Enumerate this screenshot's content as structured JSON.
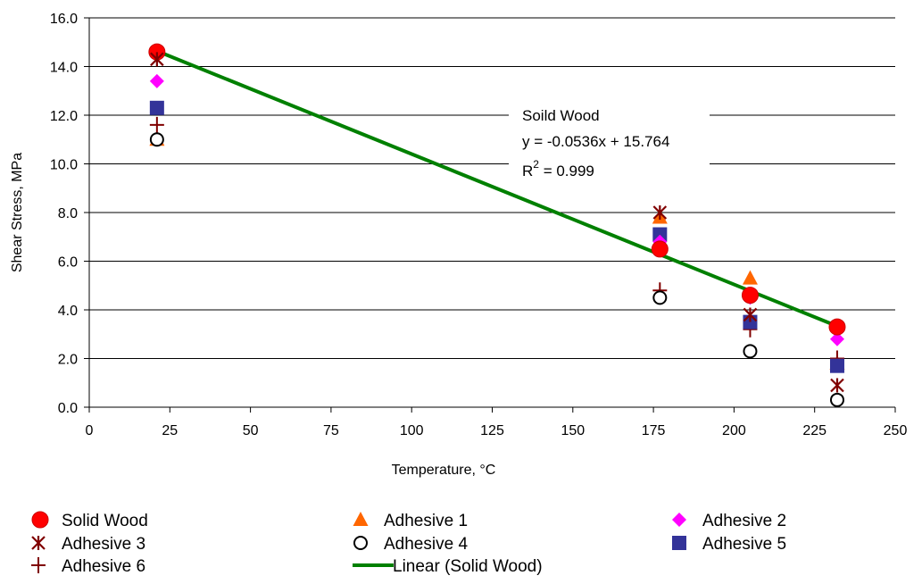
{
  "chart_data": {
    "type": "scatter",
    "xlabel": "Temperature, °C",
    "ylabel": "Shear Stress, MPa",
    "xlim": [
      0,
      250
    ],
    "ylim": [
      0,
      16
    ],
    "x_ticks": [
      "0",
      "25",
      "50",
      "75",
      "100",
      "125",
      "150",
      "175",
      "200",
      "225",
      "250"
    ],
    "y_ticks": [
      "0.0",
      "2.0",
      "4.0",
      "6.0",
      "8.0",
      "10.0",
      "12.0",
      "14.0",
      "16.0"
    ],
    "grid": "horizontal",
    "legend_position": "bottom",
    "series": [
      {
        "name": "Solid Wood",
        "marker": "circle-filled",
        "color": "#ff0000",
        "edge": "#cc0000",
        "x": [
          21,
          177,
          205,
          232
        ],
        "y": [
          14.6,
          6.5,
          4.6,
          3.3
        ]
      },
      {
        "name": "Adhesive 1",
        "marker": "triangle",
        "color": "#ff6600",
        "x": [
          21,
          177,
          205,
          232
        ],
        "y": [
          11.0,
          7.8,
          5.3,
          1.8
        ]
      },
      {
        "name": "Adhesive 2",
        "marker": "diamond",
        "color": "#ff00ff",
        "x": [
          21,
          177,
          205,
          232
        ],
        "y": [
          13.4,
          6.8,
          4.5,
          2.8
        ]
      },
      {
        "name": "Adhesive 3",
        "marker": "asterisk",
        "color": "#800000",
        "x": [
          21,
          177,
          205,
          232
        ],
        "y": [
          14.3,
          8.0,
          3.8,
          0.9
        ]
      },
      {
        "name": "Adhesive 4",
        "marker": "circle-open",
        "color": "#000000",
        "x": [
          21,
          177,
          205,
          232
        ],
        "y": [
          11.0,
          4.5,
          2.3,
          0.3
        ]
      },
      {
        "name": "Adhesive 5",
        "marker": "square",
        "color": "#333399",
        "x": [
          21,
          177,
          205,
          232
        ],
        "y": [
          12.3,
          7.1,
          3.5,
          1.7
        ]
      },
      {
        "name": "Adhesive 6",
        "marker": "plus",
        "color": "#800000",
        "x": [
          21,
          177,
          205,
          232
        ],
        "y": [
          11.6,
          4.8,
          3.2,
          2.0
        ]
      }
    ],
    "trendline": {
      "name": "Linear (Solid Wood)",
      "color": "#008000",
      "x": [
        21,
        232
      ],
      "slope": -0.0536,
      "intercept": 15.764
    },
    "annotation": {
      "title": "Soild Wood",
      "equation": "y = -0.0536x + 15.764",
      "r2_prefix": "R",
      "r2_sup": "2",
      "r2_value": " = 0.999"
    }
  }
}
